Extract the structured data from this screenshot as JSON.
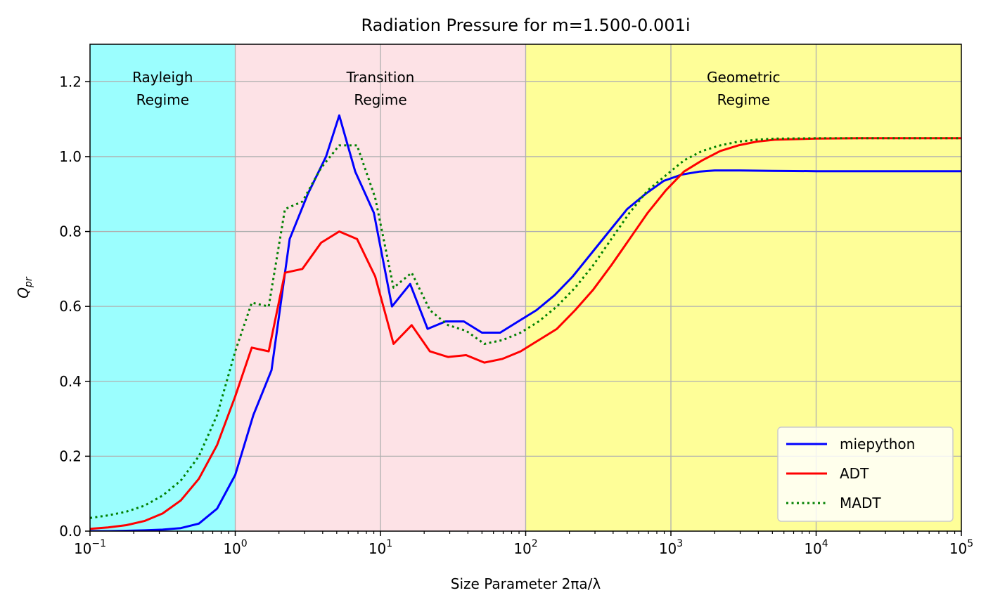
{
  "chart_data": {
    "type": "line",
    "title": "Radiation Pressure for m=1.500-0.001i",
    "xlabel": "Size Parameter 2πa/λ",
    "ylabel_main": "Q",
    "ylabel_sub": "pr",
    "xscale": "log",
    "xlim": [
      0.1,
      100000
    ],
    "ylim": [
      0,
      1.3
    ],
    "grid": true,
    "legend_position": "lower-right",
    "x_ticks": [
      {
        "base": "10",
        "exp": "−1",
        "value": 0.1
      },
      {
        "base": "10",
        "exp": "0",
        "value": 1
      },
      {
        "base": "10",
        "exp": "1",
        "value": 10
      },
      {
        "base": "10",
        "exp": "2",
        "value": 100
      },
      {
        "base": "10",
        "exp": "3",
        "value": 1000
      },
      {
        "base": "10",
        "exp": "4",
        "value": 10000
      },
      {
        "base": "10",
        "exp": "5",
        "value": 100000
      }
    ],
    "y_ticks": [
      {
        "label": "0.0",
        "value": 0.0
      },
      {
        "label": "0.2",
        "value": 0.2
      },
      {
        "label": "0.4",
        "value": 0.4
      },
      {
        "label": "0.6",
        "value": 0.6
      },
      {
        "label": "0.8",
        "value": 0.8
      },
      {
        "label": "1.0",
        "value": 1.0
      },
      {
        "label": "1.2",
        "value": 1.2
      }
    ],
    "regions": [
      {
        "line1": "Rayleigh",
        "line2": "Regime",
        "x_start": 0.1,
        "x_end": 1,
        "color": "#9bfefe"
      },
      {
        "line1": "Transition",
        "line2": "Regime",
        "x_start": 1,
        "x_end": 100,
        "color": "#fde2e6"
      },
      {
        "line1": "Geometric",
        "line2": "Regime",
        "x_start": 100,
        "x_end": 100000,
        "color": "#fefe98"
      }
    ],
    "series": [
      {
        "name": "miepython",
        "color": "#0000ff",
        "style": "solid",
        "x": [
          0.1,
          0.133,
          0.178,
          0.237,
          0.316,
          0.422,
          0.562,
          0.75,
          1.0,
          1.334,
          1.778,
          2.371,
          3.162,
          4.217,
          5.2,
          6.7,
          9.0,
          12.0,
          16.0,
          21.1,
          28.1,
          37.5,
          50.0,
          66.7,
          88.9,
          118.6,
          158.1,
          210.9,
          281.2,
          375.0,
          500.0,
          666.8,
          889.1,
          1185.7,
          1581.1,
          2000,
          3000,
          5000,
          10000,
          20000,
          50000,
          100000
        ],
        "y": [
          0.0,
          0.0,
          0.001,
          0.002,
          0.004,
          0.008,
          0.02,
          0.06,
          0.15,
          0.31,
          0.43,
          0.78,
          0.9,
          1.0,
          1.11,
          0.96,
          0.85,
          0.6,
          0.66,
          0.54,
          0.56,
          0.56,
          0.53,
          0.53,
          0.56,
          0.59,
          0.63,
          0.68,
          0.74,
          0.8,
          0.86,
          0.9,
          0.935,
          0.952,
          0.96,
          0.963,
          0.963,
          0.962,
          0.961,
          0.961,
          0.961,
          0.961
        ]
      },
      {
        "name": "ADT",
        "color": "#ff0000",
        "style": "solid",
        "x": [
          0.1,
          0.133,
          0.178,
          0.237,
          0.316,
          0.422,
          0.562,
          0.75,
          1.0,
          1.3,
          1.7,
          2.2,
          2.9,
          3.9,
          5.2,
          6.9,
          9.2,
          12.3,
          16.4,
          21.9,
          29.2,
          38.9,
          51.9,
          69.2,
          92.3,
          123,
          164,
          219,
          292,
          389,
          519,
          692,
          923,
          1231,
          1640,
          2188,
          2918,
          3891,
          5188,
          10000,
          20000,
          50000,
          100000
        ],
        "y": [
          0.006,
          0.01,
          0.016,
          0.027,
          0.047,
          0.082,
          0.14,
          0.23,
          0.36,
          0.49,
          0.48,
          0.69,
          0.7,
          0.77,
          0.8,
          0.78,
          0.68,
          0.5,
          0.55,
          0.48,
          0.465,
          0.47,
          0.45,
          0.46,
          0.48,
          0.51,
          0.54,
          0.59,
          0.645,
          0.71,
          0.78,
          0.85,
          0.91,
          0.96,
          0.99,
          1.015,
          1.03,
          1.04,
          1.045,
          1.048,
          1.049,
          1.049,
          1.049
        ]
      },
      {
        "name": "MADT",
        "color": "#008000",
        "style": "dotted",
        "x": [
          0.1,
          0.133,
          0.178,
          0.237,
          0.316,
          0.422,
          0.562,
          0.75,
          1.0,
          1.3,
          1.7,
          2.2,
          2.9,
          3.9,
          5.2,
          6.9,
          9.2,
          12.3,
          16.4,
          21.9,
          29.2,
          38.9,
          51.9,
          69.2,
          92.3,
          123,
          164,
          219,
          292,
          389,
          519,
          692,
          923,
          1231,
          1640,
          2188,
          2918,
          3891,
          5188,
          10000,
          20000,
          50000,
          100000
        ],
        "y": [
          0.035,
          0.042,
          0.052,
          0.068,
          0.095,
          0.135,
          0.2,
          0.31,
          0.48,
          0.61,
          0.6,
          0.86,
          0.88,
          0.97,
          1.03,
          1.03,
          0.89,
          0.65,
          0.69,
          0.59,
          0.55,
          0.535,
          0.5,
          0.51,
          0.53,
          0.56,
          0.6,
          0.65,
          0.71,
          0.78,
          0.85,
          0.91,
          0.95,
          0.99,
          1.015,
          1.03,
          1.04,
          1.045,
          1.048,
          1.049,
          1.049,
          1.049,
          1.049
        ]
      }
    ]
  }
}
